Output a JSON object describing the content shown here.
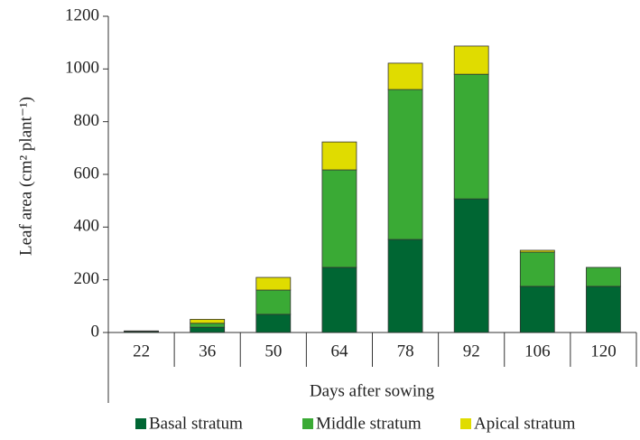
{
  "chart_data": {
    "type": "stacked_bar",
    "y_label": "Leaf area (cm² plant⁻¹)",
    "x_label": "Days after sowing",
    "categories": [
      "22",
      "36",
      "50",
      "64",
      "78",
      "92",
      "106",
      "120"
    ],
    "series": [
      {
        "name": "Basal stratum",
        "color": "#006633",
        "values": [
          4,
          20,
          69,
          247,
          353,
          507,
          175,
          175
        ]
      },
      {
        "name": "Middle stratum",
        "color": "#3aaa35",
        "values": [
          1,
          15,
          92,
          370,
          569,
          473,
          130,
          72
        ]
      },
      {
        "name": "Apical stratum",
        "color": "#e0dc00",
        "values": [
          1,
          15,
          48,
          106,
          100,
          107,
          7,
          0
        ]
      }
    ],
    "ylim": [
      0,
      1200
    ],
    "yticks": [
      0,
      200,
      400,
      600,
      800,
      1000,
      1200
    ],
    "legend": "bottom"
  }
}
